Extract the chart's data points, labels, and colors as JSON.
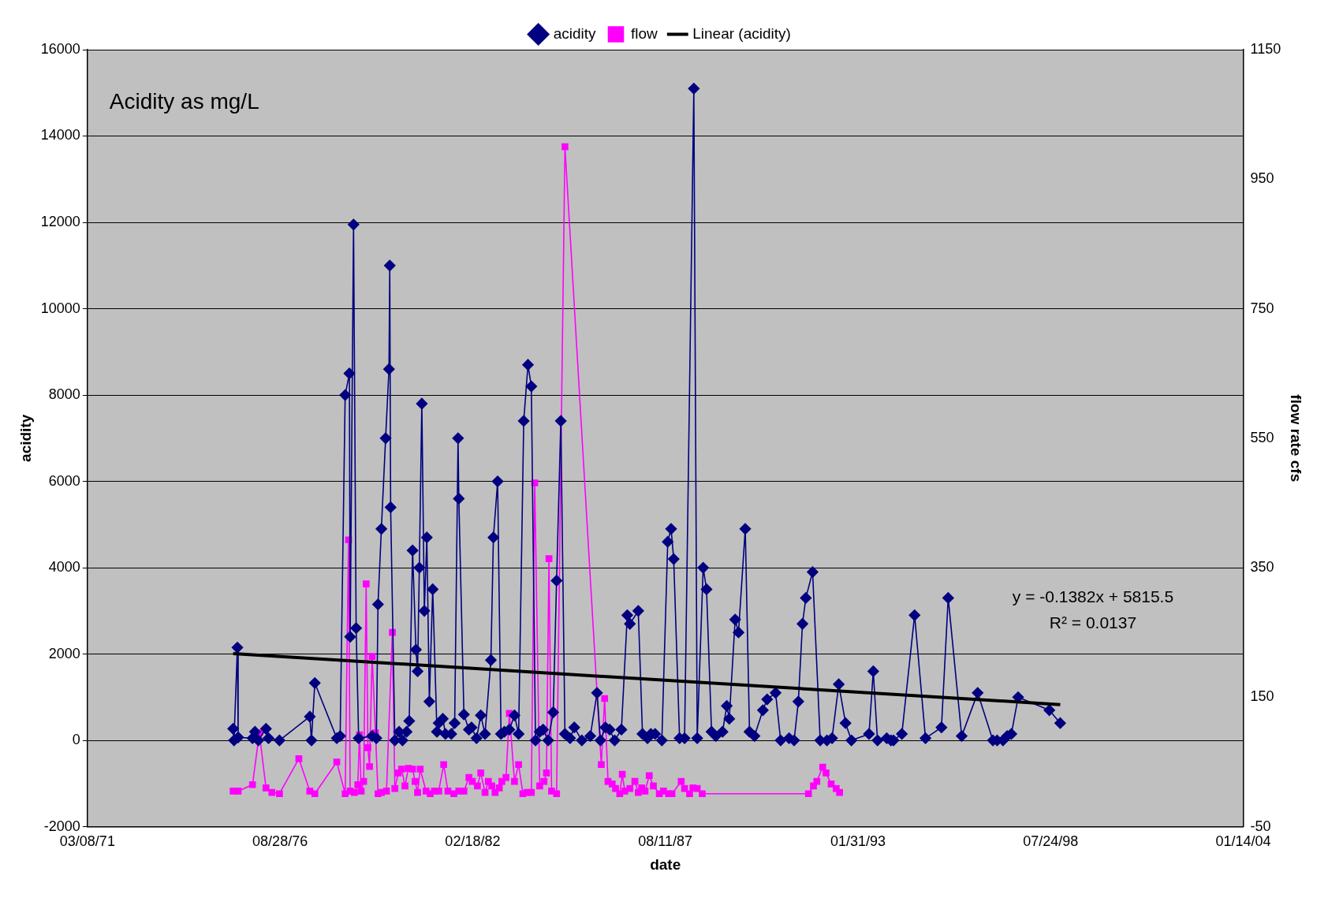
{
  "chart_data": {
    "type": "line",
    "xlabel": "date",
    "ylabel": "acidity",
    "y2label": "flow rate cfs",
    "annotations": [
      "Acidity as mg/L",
      "y = -0.1382x + 5815.5",
      "R² = 0.0137"
    ],
    "xlim": [
      "1971-03-08",
      "2004-01-14"
    ],
    "xticks": [
      {
        "value": "1971-03-08",
        "label": "03/08/71"
      },
      {
        "value": "1976-08-28",
        "label": "08/28/76"
      },
      {
        "value": "1982-02-18",
        "label": "02/18/82"
      },
      {
        "value": "1987-08-11",
        "label": "08/11/87"
      },
      {
        "value": "1993-01-31",
        "label": "01/31/93"
      },
      {
        "value": "1998-07-24",
        "label": "07/24/98"
      },
      {
        "value": "2004-01-14",
        "label": "01/14/04"
      }
    ],
    "ylim": [
      -2000,
      16000
    ],
    "yticks": [
      -2000,
      0,
      2000,
      4000,
      6000,
      8000,
      10000,
      12000,
      14000,
      16000
    ],
    "y2lim": [
      -50,
      1150
    ],
    "y2ticks": [
      -50,
      150,
      350,
      550,
      750,
      950,
      1150
    ],
    "grid": "y",
    "legend": "top",
    "line_style": "solid",
    "series": [
      {
        "name": "acidity",
        "color": "#000080",
        "marker": "diamond",
        "x": [
          "1975-04-29",
          "1975-05-08",
          "1975-06-12",
          "1975-06-20",
          "1975-11-16",
          "1975-12-12",
          "1976-01-16",
          "1976-04-04",
          "1976-04-30",
          "1976-08-22",
          "1977-07-03",
          "1977-07-20",
          "1977-08-24",
          "1978-04-09",
          "1978-05-14",
          "1978-07-05",
          "1978-08-18",
          "1978-08-26",
          "1978-09-30",
          "1978-10-27",
          "1978-11-22",
          "1979-04-11",
          "1979-05-25",
          "1979-06-11",
          "1979-07-16",
          "1979-08-29",
          "1979-10-03",
          "1979-10-11",
          "1979-10-20",
          "1979-12-03",
          "1980-01-16",
          "1980-02-20",
          "1980-04-03",
          "1980-04-30",
          "1980-06-04",
          "1980-07-09",
          "1980-07-26",
          "1980-08-13",
          "1980-09-08",
          "1980-10-04",
          "1980-10-30",
          "1980-11-25",
          "1980-12-30",
          "1981-02-12",
          "1981-03-02",
          "1981-04-14",
          "1981-05-11",
          "1981-07-11",
          "1981-08-15",
          "1981-09-19",
          "1981-09-27",
          "1981-11-19",
          "1982-01-10",
          "1982-02-06",
          "1982-03-30",
          "1982-05-13",
          "1982-06-26",
          "1982-08-26",
          "1982-09-21",
          "1982-11-04",
          "1982-12-09",
          "1983-01-13",
          "1983-03-06",
          "1983-04-28",
          "1983-06-10",
          "1983-08-02",
          "1983-09-15",
          "1983-10-20",
          "1983-12-02",
          "1984-01-15",
          "1984-02-19",
          "1984-04-12",
          "1984-06-03",
          "1984-07-08",
          "1984-08-21",
          "1984-10-03",
          "1984-11-25",
          "1985-01-08",
          "1985-03-27",
          "1985-06-23",
          "1985-09-01",
          "1985-10-06",
          "1985-11-27",
          "1986-01-10",
          "1986-03-03",
          "1986-05-12",
          "1986-07-12",
          "1986-08-08",
          "1986-11-03",
          "1986-12-17",
          "1987-02-07",
          "1987-03-14",
          "1987-04-27",
          "1987-07-06",
          "1987-09-05",
          "1987-10-10",
          "1987-11-06",
          "1988-01-06",
          "1988-02-27",
          "1988-06-02",
          "1988-07-07",
          "1988-09-07",
          "1988-10-12",
          "1988-12-03",
          "1989-01-16",
          "1989-03-27",
          "1989-05-10",
          "1989-06-05",
          "1989-08-05",
          "1989-09-09",
          "1989-11-18",
          "1990-01-01",
          "1990-02-22",
          "1990-05-20",
          "1990-07-03",
          "1990-09-29",
          "1990-11-20",
          "1991-02-16",
          "1991-04-09",
          "1991-05-23",
          "1991-07-05",
          "1991-08-09",
          "1991-10-18",
          "1992-01-05",
          "1992-03-15",
          "1992-05-07",
          "1992-07-16",
          "1992-09-24",
          "1992-11-24",
          "1993-05-26",
          "1993-07-09",
          "1993-08-22",
          "1993-11-26",
          "1994-01-09",
          "1994-02-04",
          "1994-05-02",
          "1994-09-11",
          "1995-01-02",
          "1995-06-17",
          "1995-08-26",
          "1996-01-13",
          "1996-06-27",
          "1996-12-02",
          "1997-01-15",
          "1997-03-17",
          "1997-04-29",
          "1997-06-12",
          "1997-08-21",
          "1998-07-11",
          "1998-11-01"
        ],
        "values": [
          270,
          0,
          2150,
          70,
          50,
          200,
          0,
          270,
          50,
          0,
          550,
          0,
          1330,
          50,
          100,
          8000,
          8500,
          2400,
          11950,
          2600,
          50,
          100,
          50,
          3150,
          4900,
          7000,
          8600,
          11000,
          5400,
          0,
          200,
          0,
          200,
          450,
          4400,
          2100,
          1600,
          4000,
          7800,
          3000,
          4700,
          900,
          3500,
          200,
          400,
          500,
          150,
          150,
          400,
          7000,
          5600,
          600,
          250,
          300,
          50,
          580,
          150,
          1860,
          4700,
          6000,
          150,
          200,
          250,
          580,
          150,
          7400,
          8700,
          8200,
          0,
          200,
          250,
          0,
          650,
          3700,
          7400,
          150,
          50,
          300,
          0,
          100,
          1100,
          0,
          300,
          250,
          0,
          250,
          2900,
          2700,
          3000,
          150,
          50,
          150,
          150,
          0,
          4600,
          4900,
          4200,
          50,
          50,
          15100,
          50,
          4000,
          3500,
          200,
          100,
          200,
          800,
          500,
          2800,
          2500,
          4900,
          200,
          100,
          700,
          950,
          1100,
          0,
          50,
          0,
          900,
          2700,
          3300,
          3900,
          0,
          0,
          50,
          1300,
          400,
          0,
          150,
          1600,
          0,
          50,
          0,
          0,
          150,
          2900,
          50,
          300,
          3300,
          100,
          1100,
          0,
          0,
          0,
          100,
          150,
          1000,
          700,
          400
        ]
      },
      {
        "name": "flow",
        "color": "#ff00ff",
        "marker": "square",
        "axis": "y2",
        "x": [
          "1975-04-29",
          "1975-06-20",
          "1975-11-16",
          "1976-01-26",
          "1976-04-04",
          "1976-06-04",
          "1976-08-22",
          "1977-03-11",
          "1977-07-03",
          "1977-08-24",
          "1978-04-09",
          "1978-07-05",
          "1978-08-09",
          "1978-08-26",
          "1978-10-09",
          "1978-11-13",
          "1978-12-01",
          "1978-12-18",
          "1979-01-13",
          "1979-02-08",
          "1979-02-26",
          "1979-03-15",
          "1979-04-11",
          "1979-05-16",
          "1979-06-11",
          "1979-07-16",
          "1979-09-07",
          "1979-11-07",
          "1979-12-03",
          "1980-01-07",
          "1980-02-11",
          "1980-03-17",
          "1980-04-21",
          "1980-06-04",
          "1980-06-30",
          "1980-07-26",
          "1980-08-22",
          "1980-10-22",
          "1980-12-04",
          "1981-01-17",
          "1981-03-02",
          "1981-04-23",
          "1981-06-06",
          "1981-08-06",
          "1981-09-27",
          "1981-11-19",
          "1982-01-10",
          "1982-02-14",
          "1982-04-08",
          "1982-05-13",
          "1982-06-26",
          "1982-07-31",
          "1982-09-04",
          "1982-10-09",
          "1982-11-21",
          "1982-12-18",
          "1983-01-30",
          "1983-03-06",
          "1983-04-28",
          "1983-06-10",
          "1983-07-24",
          "1983-09-06",
          "1983-10-20",
          "1983-11-24",
          "1984-01-15",
          "1984-02-28",
          "1984-03-25",
          "1984-04-20",
          "1984-05-17",
          "1984-07-08",
          "1984-10-03",
          "1985-10-15",
          "1985-11-19",
          "1985-12-24",
          "1986-02-05",
          "1986-03-12",
          "1986-04-25",
          "1986-05-21",
          "1986-06-16",
          "1986-08-08",
          "1986-09-29",
          "1986-11-03",
          "1986-12-08",
          "1987-01-12",
          "1987-02-25",
          "1987-04-09",
          "1987-06-10",
          "1987-07-23",
          "1987-09-14",
          "1987-10-19",
          "1988-01-23",
          "1988-02-27",
          "1988-04-19",
          "1988-05-24",
          "1988-07-07",
          "1988-08-28",
          "1991-09-05",
          "1991-10-27",
          "1991-12-01",
          "1992-01-31",
          "1992-03-06",
          "1992-04-28",
          "1992-06-19",
          "1992-07-24"
        ],
        "values": [
          5,
          5,
          15,
          95,
          10,
          3,
          1,
          55,
          5,
          1,
          50,
          1,
          393,
          5,
          3,
          15,
          92,
          5,
          20,
          325,
          72,
          43,
          213,
          95,
          1,
          3,
          5,
          250,
          9,
          33,
          39,
          13,
          40,
          39,
          20,
          3,
          39,
          5,
          1,
          5,
          5,
          46,
          5,
          1,
          5,
          5,
          26,
          20,
          13,
          33,
          3,
          20,
          13,
          3,
          10,
          20,
          26,
          125,
          20,
          46,
          1,
          3,
          3,
          481,
          13,
          20,
          33,
          364,
          5,
          1,
          1000,
          46,
          148,
          20,
          16,
          9,
          1,
          31,
          5,
          9,
          20,
          3,
          10,
          5,
          29,
          13,
          1,
          5,
          1,
          1,
          20,
          9,
          1,
          10,
          9,
          1,
          1,
          13,
          20,
          42,
          33,
          16,
          9,
          3
        ]
      },
      {
        "name": "Linear (acidity)",
        "color": "#000000",
        "marker": "none",
        "x": [
          "1975-04-29",
          "1998-11-01"
        ],
        "values": [
          2010,
          830
        ]
      }
    ]
  }
}
